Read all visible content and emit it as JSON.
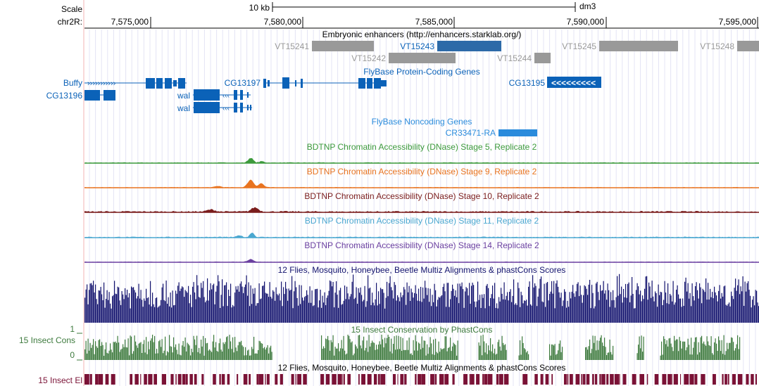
{
  "scale": {
    "label": "Scale",
    "bar_label": "10 kb",
    "assembly": "dm3"
  },
  "ruler": {
    "chrom_label": "chr2R:",
    "ticks": [
      "7,575,000",
      "7,580,000",
      "7,585,000",
      "7,590,000",
      "7,595,000"
    ]
  },
  "colors": {
    "gene_blue": "#0b62b8",
    "enhancer_gray": "#999999",
    "enhancer_highlight": "#2d6aa8",
    "noncoding_blue": "#2a8bdc",
    "stage5": "#3c9a3c",
    "stage9": "#e8731f",
    "stage10": "#7a1c1c",
    "stage11": "#4aa7d0",
    "stage14": "#6a3fa0",
    "multiz": "#13136e",
    "phastcons": "#3d7a3d",
    "elements": "#7a1236"
  },
  "tracks": {
    "enhancers": {
      "title": "Embryonic enhancers (http://enhancers.starklab.org/)",
      "items": [
        "VT15241",
        "VT15242",
        "VT15243",
        "VT15244",
        "VT15245",
        "VT15248"
      ]
    },
    "coding": {
      "title": "FlyBase Protein-Coding Genes",
      "genes": [
        "Buffy",
        "CG13196",
        "wal",
        "wal",
        "CG13197",
        "CG13195"
      ]
    },
    "noncoding": {
      "title": "FlyBase Noncoding Genes",
      "genes": [
        "CR33471-RA"
      ]
    },
    "dnase": [
      {
        "title": "BDTNP Chromatin Accessibility (DNase) Stage 5, Replicate 2"
      },
      {
        "title": "BDTNP Chromatin Accessibility (DNase) Stage 9, Replicate 2"
      },
      {
        "title": "BDTNP Chromatin Accessibility (DNase) Stage 10, Replicate 2"
      },
      {
        "title": "BDTNP Chromatin Accessibility (DNase) Stage 11, Replicate 2"
      },
      {
        "title": "BDTNP Chromatin Accessibility (DNase) Stage 14, Replicate 2"
      }
    ],
    "multiz": {
      "title": "12 Flies, Mosquito, Honeybee, Beetle Multiz Alignments & phastCons Scores"
    },
    "phastcons": {
      "title": "15 Insect Conservation by PhastCons",
      "side_label": "15 Insect Cons",
      "y_max": "1",
      "y_min": "0"
    },
    "elements": {
      "title": "12 Flies, Mosquito, Honeybee, Beetle Multiz Alignments & phastCons Scores",
      "side_label": "15 Insect El"
    }
  }
}
